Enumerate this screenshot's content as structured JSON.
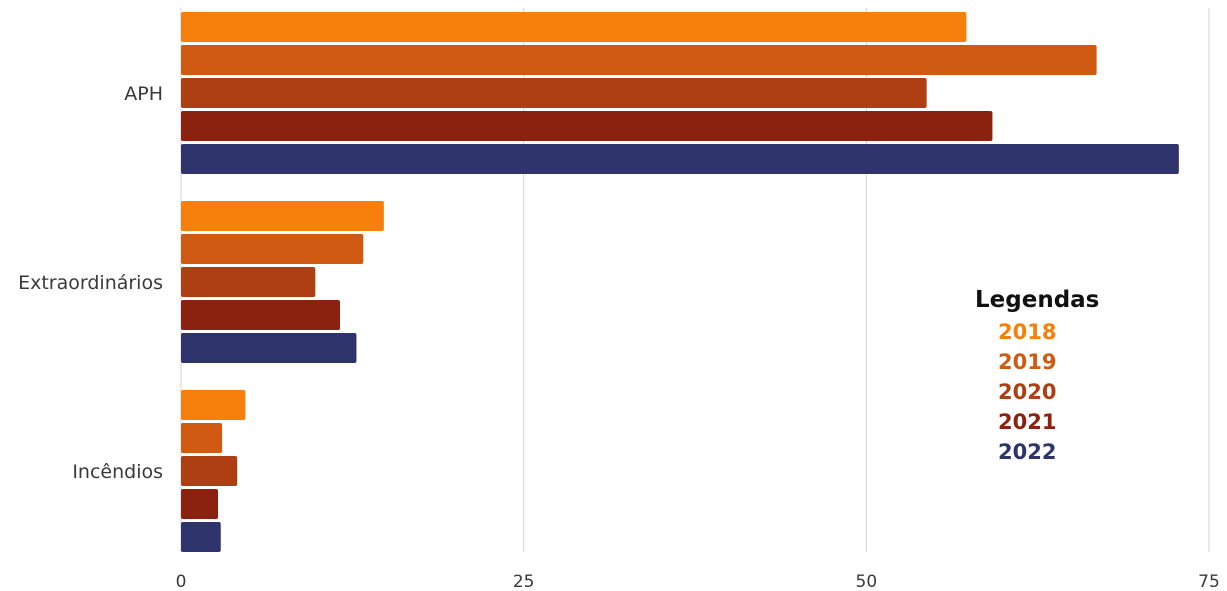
{
  "chart_data": {
    "type": "bar",
    "orientation": "horizontal",
    "categories": [
      "APH",
      "Extraordinários",
      "Incêndios"
    ],
    "series": [
      {
        "name": "2018",
        "color": "#F77F0C",
        "values": [
          57.3,
          14.8,
          4.7
        ]
      },
      {
        "name": "2019",
        "color": "#D05A12",
        "values": [
          66.8,
          13.3,
          3.0
        ]
      },
      {
        "name": "2020",
        "color": "#AE3F12",
        "values": [
          54.4,
          9.8,
          4.1
        ]
      },
      {
        "name": "2021",
        "color": "#8B2210",
        "values": [
          59.2,
          11.6,
          2.7
        ]
      },
      {
        "name": "2022",
        "color": "#2F336B",
        "values": [
          72.8,
          12.8,
          2.9
        ]
      }
    ],
    "xlim": [
      0,
      75
    ],
    "xticks": [
      0,
      25,
      50,
      75
    ],
    "grid": true,
    "legend": {
      "title": "Legendas",
      "placement": "right"
    }
  }
}
